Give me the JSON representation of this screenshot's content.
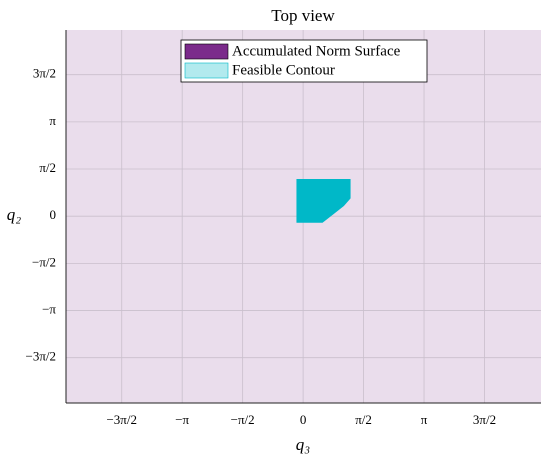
{
  "chart_data": {
    "type": "region",
    "title": "Top view",
    "xlabel": "q₃",
    "ylabel": "q₂",
    "xlim": [
      -6.16,
      6.18
    ],
    "ylim": [
      -6.22,
      6.2
    ],
    "xticks": [
      {
        "value": -4.712,
        "label": "−3π/2"
      },
      {
        "value": -3.1416,
        "label": "−π"
      },
      {
        "value": -1.5708,
        "label": "−π/2"
      },
      0,
      {
        "value": 1.5708,
        "label": "π/2"
      },
      {
        "value": 3.1416,
        "label": "π"
      },
      {
        "value": 4.712,
        "label": "3π/2"
      }
    ],
    "yticks": [
      {
        "value": -4.712,
        "label": "−3π/2"
      },
      {
        "value": -3.1416,
        "label": "−π"
      },
      {
        "value": -1.5708,
        "label": "−π/2"
      },
      0,
      {
        "value": 1.5708,
        "label": "π/2"
      },
      {
        "value": 3.1416,
        "label": "π"
      },
      {
        "value": 4.712,
        "label": "3π/2"
      }
    ],
    "grid": true,
    "legend": "top",
    "series": [
      {
        "name": "Accumulated Norm Surface",
        "color": "#7b2b8b"
      },
      {
        "name": "Feasible Contour",
        "color": "#00b8c8",
        "x": [
          -0.16,
          0.5,
          0.8,
          1.05,
          1.22,
          1.22,
          -0.16
        ],
        "y": [
          -0.2,
          -0.2,
          0.1,
          0.35,
          0.6,
          1.22,
          1.22
        ]
      }
    ]
  }
}
